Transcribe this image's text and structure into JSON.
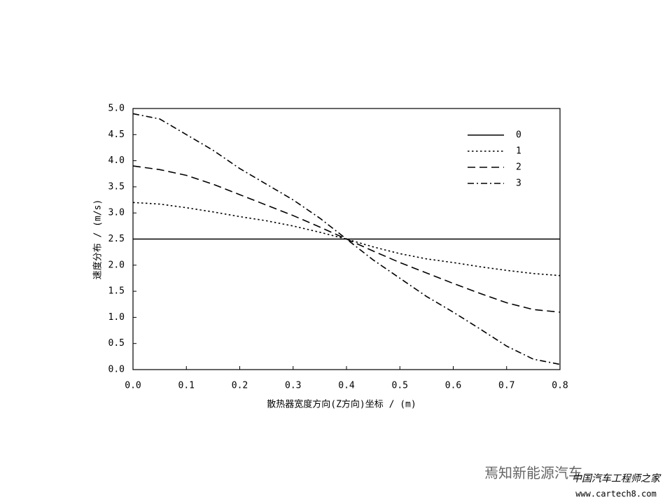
{
  "chart_data": {
    "type": "line",
    "y_label": "速度分布 / (m/s)",
    "x_label": "散热器宽度方向(Z方向)坐标 / (m)",
    "x": [
      0,
      0.05,
      0.1,
      0.15,
      0.2,
      0.25,
      0.3,
      0.35,
      0.4,
      0.45,
      0.5,
      0.55,
      0.6,
      0.65,
      0.7,
      0.75,
      0.8
    ],
    "series": [
      {
        "name": "0",
        "color": "#000000",
        "dash": "none",
        "values": [
          2.5,
          2.5,
          2.5,
          2.5,
          2.5,
          2.5,
          2.5,
          2.5,
          2.5,
          2.5,
          2.5,
          2.5,
          2.5,
          2.5,
          2.5,
          2.5,
          2.5
        ]
      },
      {
        "name": "1",
        "color": "#000000",
        "dash": "dotted",
        "values": [
          3.2,
          3.17,
          3.1,
          3.02,
          2.93,
          2.85,
          2.75,
          2.63,
          2.5,
          2.35,
          2.22,
          2.12,
          2.05,
          1.97,
          1.9,
          1.84,
          1.8
        ]
      },
      {
        "name": "2",
        "color": "#000000",
        "dash": "dashed",
        "values": [
          3.9,
          3.83,
          3.72,
          3.55,
          3.35,
          3.15,
          2.95,
          2.73,
          2.5,
          2.27,
          2.05,
          1.85,
          1.65,
          1.46,
          1.28,
          1.15,
          1.1
        ]
      },
      {
        "name": "3",
        "color": "#000000",
        "dash": "dashdot",
        "values": [
          4.9,
          4.8,
          4.5,
          4.2,
          3.85,
          3.55,
          3.25,
          2.9,
          2.5,
          2.1,
          1.75,
          1.4,
          1.1,
          0.78,
          0.45,
          0.2,
          0.1
        ]
      }
    ],
    "xlim": [
      0,
      0.8
    ],
    "ylim": [
      0,
      5
    ],
    "xticks": [
      {
        "value": 0,
        "label": "0.0"
      },
      0.1,
      0.2,
      0.3,
      0.4,
      0.5,
      0.6,
      0.7,
      0.8
    ],
    "yticks": [
      {
        "value": 0,
        "label": "0.0"
      },
      0.5,
      {
        "value": 1,
        "label": "1.0"
      },
      1.5,
      {
        "value": 2,
        "label": "2.0"
      },
      2.5,
      {
        "value": 3,
        "label": "3.0"
      },
      3.5,
      {
        "value": 4,
        "label": "4.0"
      },
      4.5,
      {
        "value": 5,
        "label": "5.0"
      }
    ],
    "legend": "upper right",
    "annotations": [
      "焉知新能源汽车",
      "中国汽车工程师之家",
      "www.cartech8.com"
    ]
  }
}
